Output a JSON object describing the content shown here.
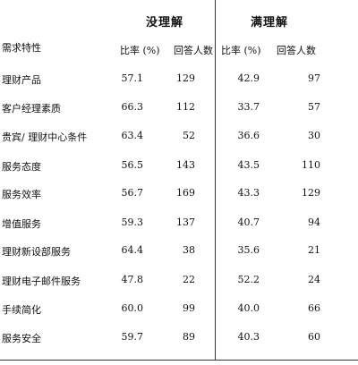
{
  "table": {
    "group_headers": [
      "没理解",
      "满理解"
    ],
    "row_header": "需求特性",
    "col_headers": [
      "比率 (%)",
      "回答人数",
      "比率 (%)",
      "回答人数"
    ],
    "rows": [
      {
        "label": "理财产品",
        "values": [
          "57.1",
          "129",
          "42.9",
          "97"
        ]
      },
      {
        "label": "客户经理素质",
        "values": [
          "66.3",
          "112",
          "33.7",
          "57"
        ]
      },
      {
        "label": "贵宾/ 理财中心条件",
        "values": [
          "63.4",
          "52",
          "36.6",
          "30"
        ]
      },
      {
        "label": "服务态度",
        "values": [
          "56.5",
          "143",
          "43.5",
          "110"
        ]
      },
      {
        "label": "服务效率",
        "values": [
          "56.7",
          "169",
          "43.3",
          "129"
        ]
      },
      {
        "label": "增值服务",
        "values": [
          "59.3",
          "137",
          "40.7",
          "94"
        ]
      },
      {
        "label": "理财新设部服务",
        "values": [
          "64.4",
          "38",
          "35.6",
          "21"
        ]
      },
      {
        "label": "理财电子邮件服务",
        "values": [
          "47.8",
          "22",
          "52.2",
          "24"
        ]
      },
      {
        "label": "手续简化",
        "values": [
          "60.0",
          "99",
          "40.0",
          "66"
        ]
      },
      {
        "label": "服务安全",
        "values": [
          "59.7",
          "89",
          "40.3",
          "60"
        ]
      }
    ]
  }
}
